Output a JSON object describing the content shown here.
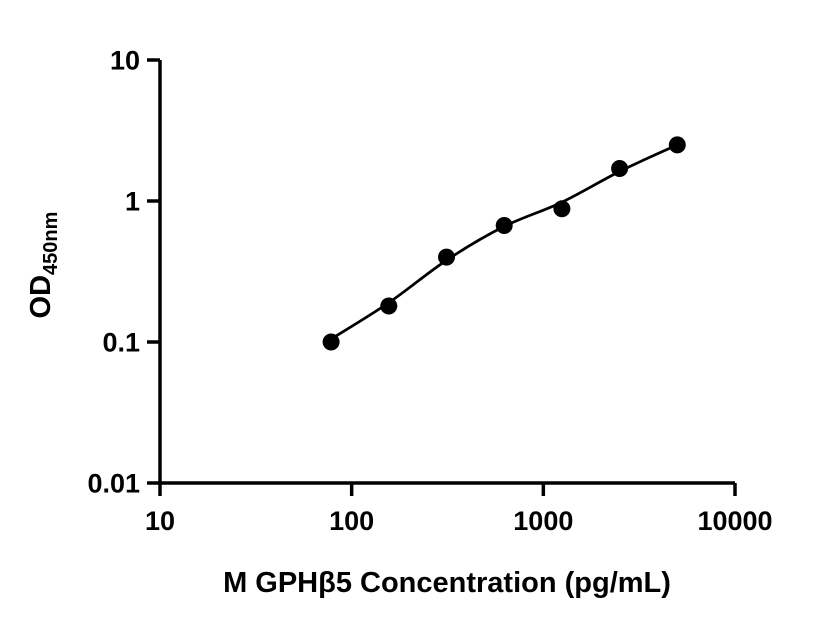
{
  "chart_data": {
    "type": "scatter",
    "title": "",
    "xlabel": "M GPHβ5 Concentration (pg/mL)",
    "ylabel": "OD",
    "ylabel_subscript": "450nm",
    "xscale": "log",
    "yscale": "log",
    "xlim": [
      10,
      10000
    ],
    "ylim": [
      0.01,
      10
    ],
    "grid": false,
    "legend": "none",
    "x_ticks": [
      10,
      100,
      1000,
      10000
    ],
    "y_ticks": [
      10,
      1,
      0.1,
      0.01
    ],
    "x_tick_labels": [
      "10",
      "100",
      "1000",
      "10000"
    ],
    "y_tick_labels": [
      "10",
      "1",
      "0.1",
      "0.01"
    ],
    "series": [
      {
        "name": "standard-curve-points",
        "type": "scatter",
        "x": [
          78.125,
          156.25,
          312.5,
          625,
          1250,
          2500,
          5000
        ],
        "y": [
          0.1,
          0.18,
          0.4,
          0.67,
          0.88,
          1.7,
          2.5
        ]
      }
    ],
    "fit_curve": {
      "name": "four-parameter-fit",
      "x": [
        78.125,
        156.25,
        312.5,
        625,
        1250,
        2500,
        5000
      ],
      "y": [
        0.105,
        0.19,
        0.38,
        0.66,
        0.98,
        1.62,
        2.5
      ]
    },
    "point_color": "#000000",
    "line_color": "#000000",
    "background_color": "#ffffff"
  }
}
